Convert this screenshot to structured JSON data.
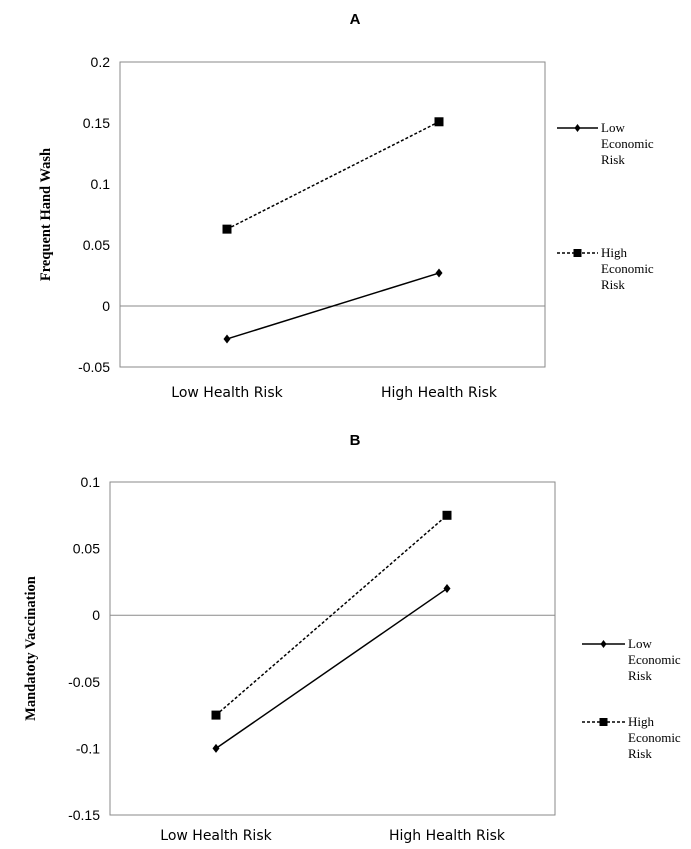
{
  "chart_data": [
    {
      "type": "line",
      "title": "A",
      "xlabel": "",
      "ylabel": "Frequent Hand Wash",
      "categories": [
        "Low Health Risk",
        "High Health Risk"
      ],
      "ylim": [
        -0.05,
        0.2
      ],
      "yticks": [
        -0.05,
        0,
        0.05,
        0.1,
        0.15,
        0.2
      ],
      "ytick_labels": [
        "-0.05",
        "0",
        "0.05",
        "0.1",
        "0.15",
        "0.2"
      ],
      "grid": false,
      "legend_position": "right",
      "series": [
        {
          "name": "Low Economic Risk",
          "legend_lines": [
            "Low",
            "Economic",
            "Risk"
          ],
          "values": [
            -0.027,
            0.027
          ],
          "style": "solid",
          "marker": "diamond",
          "color": "#000000"
        },
        {
          "name": "High Economic Risk",
          "legend_lines": [
            "High",
            "Economic",
            "Risk"
          ],
          "values": [
            0.063,
            0.151
          ],
          "style": "dashed",
          "marker": "square",
          "color": "#000000"
        }
      ]
    },
    {
      "type": "line",
      "title": "B",
      "xlabel": "",
      "ylabel": "Mandatoty Vaccination",
      "categories": [
        "Low Health Risk",
        "High Health Risk"
      ],
      "ylim": [
        -0.15,
        0.1
      ],
      "yticks": [
        -0.15,
        -0.1,
        -0.05,
        0,
        0.05,
        0.1
      ],
      "ytick_labels": [
        "-0.15",
        "-0.1",
        "-0.05",
        "0",
        "0.05",
        "0.1"
      ],
      "grid": false,
      "legend_position": "right",
      "series": [
        {
          "name": "Low Economic Risk",
          "legend_lines": [
            "Low",
            "Economic",
            "Risk"
          ],
          "values": [
            -0.1,
            0.02
          ],
          "style": "solid",
          "marker": "diamond",
          "color": "#000000"
        },
        {
          "name": "High Economic Risk",
          "legend_lines": [
            "High",
            "Economic",
            "Risk"
          ],
          "values": [
            -0.075,
            0.075
          ],
          "style": "dashed",
          "marker": "square",
          "color": "#000000"
        }
      ]
    }
  ]
}
